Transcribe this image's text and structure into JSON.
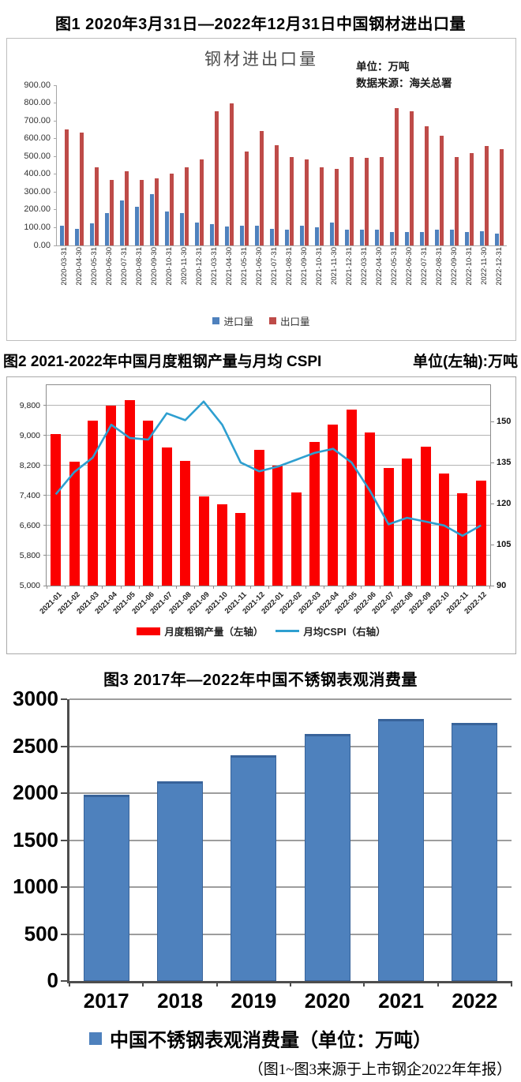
{
  "page": {
    "source_caption": "（图1~图3来源于上市钢企2022年年报）"
  },
  "chart_data": [
    {
      "id": "chart1",
      "type": "bar",
      "figure_caption": "图1 2020年3月31日—2022年12月31日中国钢材进出口量",
      "title": "钢材进出口量",
      "unit_note": "单位：万吨",
      "source_note": "数据来源：海关总署",
      "ylim": [
        0,
        900
      ],
      "ytick_step": 100,
      "ytick_format": "two_decimals",
      "grid": false,
      "legend_position": "bottom",
      "categories": [
        "2020-03-31",
        "2020-04-30",
        "2020-05-31",
        "2020-06-30",
        "2020-07-31",
        "2020-08-31",
        "2020-09-30",
        "2020-10-31",
        "2020-11-30",
        "2020-12-31",
        "2021-03-31",
        "2021-04-30",
        "2021-05-31",
        "2021-06-30",
        "2021-07-31",
        "2021-08-31",
        "2021-09-30",
        "2021-10-31",
        "2021-11-30",
        "2021-12-31",
        "2022-03-31",
        "2022-04-30",
        "2022-05-31",
        "2022-06-30",
        "2022-07-31",
        "2022-08-31",
        "2022-09-30",
        "2022-10-31",
        "2022-11-30",
        "2022-12-31"
      ],
      "series": [
        {
          "name": "进口量",
          "color": "#4F81BD",
          "values": [
            111,
            93,
            122,
            182,
            251,
            219,
            288,
            189,
            182,
            130,
            120,
            106,
            110,
            110,
            91,
            90,
            113,
            100,
            127,
            87,
            87,
            89,
            74,
            77,
            74,
            90,
            88,
            77,
            80,
            65
          ]
        },
        {
          "name": "出口量",
          "color": "#BE4B48",
          "values": [
            650,
            635,
            440,
            367,
            415,
            367,
            378,
            402,
            440,
            485,
            755,
            800,
            527,
            643,
            565,
            497,
            485,
            440,
            428,
            497,
            490,
            497,
            770,
            755,
            668,
            618,
            498,
            520,
            560,
            540
          ]
        }
      ]
    },
    {
      "id": "chart2",
      "type": "bar+line",
      "figure_caption": "图2 2021-2022年中国月度粗钢产量与月均 CSPI",
      "unit_note": "单位(左轴):万吨",
      "left_ylim": [
        5000,
        10340
      ],
      "left_yticks": [
        5000,
        5800,
        6600,
        7400,
        8200,
        9000,
        9800
      ],
      "right_ylim": [
        90,
        163.3
      ],
      "right_yticks": [
        90,
        105,
        120,
        135,
        150
      ],
      "grid": true,
      "legend_position": "bottom",
      "categories": [
        "2021-01",
        "2021-02",
        "2021-03",
        "2021-04",
        "2021-05",
        "2021-06",
        "2021-07",
        "2021-08",
        "2021-09",
        "2021-10",
        "2021-11",
        "2021-12",
        "2022-01",
        "2022-02",
        "2022-03",
        "2022-04",
        "2022-05",
        "2022-06",
        "2022-07",
        "2022-08",
        "2022-09",
        "2022-10",
        "2022-11",
        "2022-12"
      ],
      "bar_series": {
        "name": "月度粗钢产量（左轴）",
        "axis": "left",
        "color": "#FB0000",
        "values": [
          9030,
          8300,
          9400,
          9790,
          9950,
          9390,
          8680,
          8320,
          7375,
          7160,
          6930,
          8620,
          8200,
          7490,
          8830,
          9280,
          9680,
          9070,
          8140,
          8390,
          8700,
          7980,
          7450,
          7790
        ]
      },
      "line_series": {
        "name": "月均CSPI（右轴）",
        "axis": "right",
        "color": "#2E9FD0",
        "values": [
          123.4,
          131.5,
          136.8,
          148.8,
          144.0,
          143.4,
          153.0,
          150.5,
          157.3,
          148.8,
          135.0,
          131.8,
          133.5,
          136.0,
          138.5,
          140.0,
          135.0,
          124.6,
          112.4,
          114.8,
          113.4,
          112.0,
          108.2,
          112.0
        ]
      }
    },
    {
      "id": "chart3",
      "type": "bar",
      "figure_caption": "图3 2017年—2022年中国不锈钢表观消费量",
      "legend_label": "中国不锈钢表观消费量（单位：万吨）",
      "ylim": [
        0,
        3000
      ],
      "ytick_step": 500,
      "grid": true,
      "legend_position": "bottom",
      "bar_color": "#4E81BD",
      "bar_edge_color": "#38639A",
      "categories": [
        "2017",
        "2018",
        "2019",
        "2020",
        "2021",
        "2022"
      ],
      "values": [
        1980,
        2130,
        2400,
        2630,
        2790,
        2750
      ]
    }
  ]
}
